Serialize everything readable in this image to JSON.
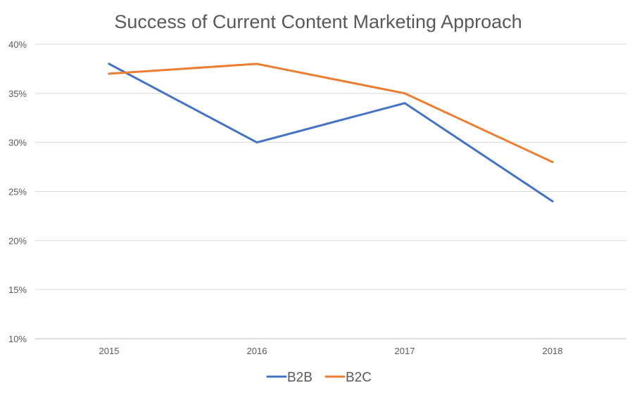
{
  "chart_data": {
    "type": "line",
    "title": "Success of Current Content Marketing Approach",
    "categories": [
      "2015",
      "2016",
      "2017",
      "2018"
    ],
    "series": [
      {
        "name": "B2B",
        "color": "#4472C4",
        "values": [
          38,
          30,
          34,
          24
        ]
      },
      {
        "name": "B2C",
        "color": "#ED7D31",
        "values": [
          37,
          38,
          35,
          28
        ]
      }
    ],
    "y_ticks": [
      10,
      15,
      20,
      25,
      30,
      35,
      40
    ],
    "y_tick_labels": [
      "10%",
      "15%",
      "20%",
      "25%",
      "30%",
      "35%",
      "40%"
    ],
    "ylim": [
      10,
      40
    ],
    "grid": true,
    "legend_position": "bottom"
  }
}
